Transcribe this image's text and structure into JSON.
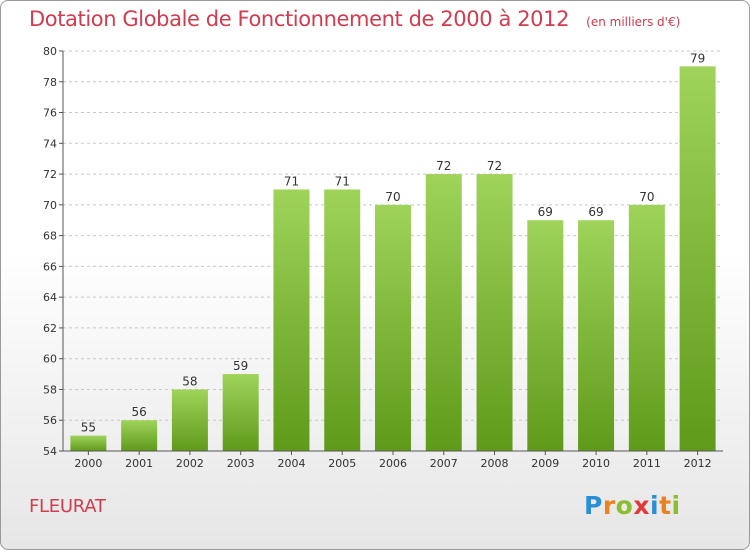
{
  "chart_title": "Dotation Globale de Fonctionnement de 2000 à 2012",
  "chart_unit": "(en milliers d'€)",
  "commune": "FLEURAT",
  "logo": {
    "text": "Proxiti",
    "letters": [
      {
        "ch": "P",
        "color": "#2a8fd6"
      },
      {
        "ch": "r",
        "color": "#e9821f"
      },
      {
        "ch": "o",
        "color": "#8cbd2c"
      },
      {
        "ch": "x",
        "color": "#e23a3a"
      },
      {
        "ch": "i",
        "color": "#2a8fd6"
      },
      {
        "ch": "t",
        "color": "#e9821f"
      },
      {
        "ch": "i",
        "color": "#8cbd2c"
      }
    ]
  },
  "colors": {
    "title": "#d13c4f",
    "bar_top": "#9fd35a",
    "bar_bottom": "#5f9a1a",
    "grid": "#c8c8c8"
  },
  "chart_data": {
    "type": "bar",
    "title": "Dotation Globale de Fonctionnement de 2000 à 2012",
    "subtitle": "(en milliers d'€)",
    "categories": [
      "2000",
      "2001",
      "2002",
      "2003",
      "2004",
      "2005",
      "2006",
      "2007",
      "2008",
      "2009",
      "2010",
      "2011",
      "2012"
    ],
    "values": [
      55,
      56,
      58,
      59,
      71,
      71,
      70,
      72,
      72,
      69,
      69,
      70,
      79
    ],
    "ylim": [
      54,
      80
    ],
    "yticks": [
      54,
      56,
      58,
      60,
      62,
      64,
      66,
      68,
      70,
      72,
      74,
      76,
      78,
      80
    ],
    "grid": true,
    "data_labels": true
  }
}
